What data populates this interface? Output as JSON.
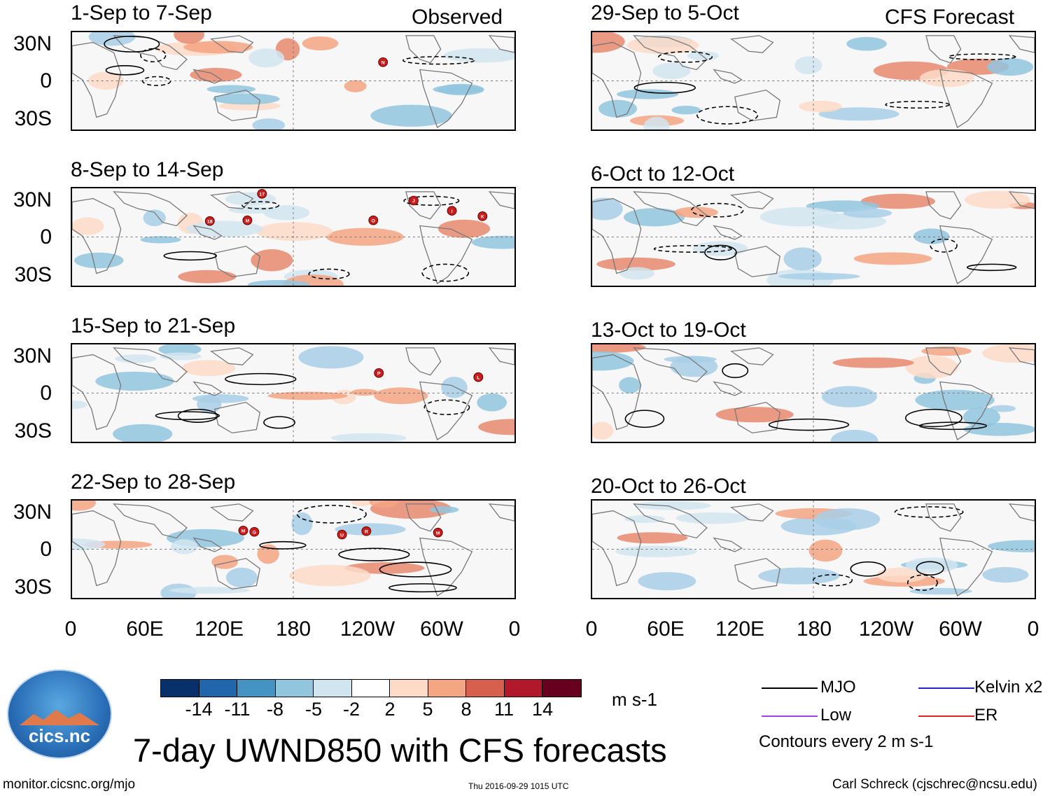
{
  "chart_data": {
    "type": "heatmap",
    "title": "7-day UWND850 with CFS forecasts",
    "variable": "850 hPa zonal wind anomaly",
    "units": "m s-1",
    "column_labels": {
      "left": "Observed",
      "right": "CFS Forecast"
    },
    "lat_ticks": [
      "30N",
      "0",
      "30S"
    ],
    "lon_ticks": [
      "0",
      "60E",
      "120E",
      "180",
      "120W",
      "60W",
      "0"
    ],
    "panels": [
      {
        "column": "left",
        "period": "1-Sep to 7-Sep",
        "storms": [
          "N"
        ]
      },
      {
        "column": "left",
        "period": "8-Sep to 14-Sep",
        "storms": [
          "17",
          "18",
          "M",
          "O",
          "J",
          "I",
          "K"
        ]
      },
      {
        "column": "left",
        "period": "15-Sep to 21-Sep",
        "storms": [
          "P",
          "L"
        ]
      },
      {
        "column": "left",
        "period": "22-Sep to 28-Sep",
        "storms": [
          "M",
          "G",
          "U",
          "R",
          "M"
        ]
      },
      {
        "column": "right",
        "period": "29-Sep to 5-Oct",
        "storms": []
      },
      {
        "column": "right",
        "period": "6-Oct to 12-Oct",
        "storms": []
      },
      {
        "column": "right",
        "period": "13-Oct to 19-Oct",
        "storms": []
      },
      {
        "column": "right",
        "period": "20-Oct to 26-Oct",
        "storms": []
      }
    ],
    "colorbar": {
      "ticks": [
        "-14",
        "-11",
        "-8",
        "-5",
        "-2",
        "2",
        "5",
        "8",
        "11",
        "14"
      ],
      "colors": [
        "#08306b",
        "#2166ac",
        "#4393c3",
        "#92c5de",
        "#d1e5f0",
        "#ffffff",
        "#fddbc7",
        "#f4a582",
        "#d6604d",
        "#b2182b",
        "#67001f"
      ]
    },
    "contour_legend": [
      {
        "label": "MJO",
        "color": "#000000"
      },
      {
        "label": "Kelvin x2",
        "color": "#2222cc"
      },
      {
        "label": "Low",
        "color": "#a040e0"
      },
      {
        "label": "ER",
        "color": "#dd2222"
      }
    ],
    "contour_note": "Contours every 2 m s-1"
  },
  "footer": {
    "left": "monitor.cicsnc.org/mjo",
    "center": "Thu 2016-09-29 1015 UTC",
    "right": "Carl Schreck (cjschrec@ncsu.edu)"
  },
  "logo": {
    "text": "cics.nc"
  }
}
